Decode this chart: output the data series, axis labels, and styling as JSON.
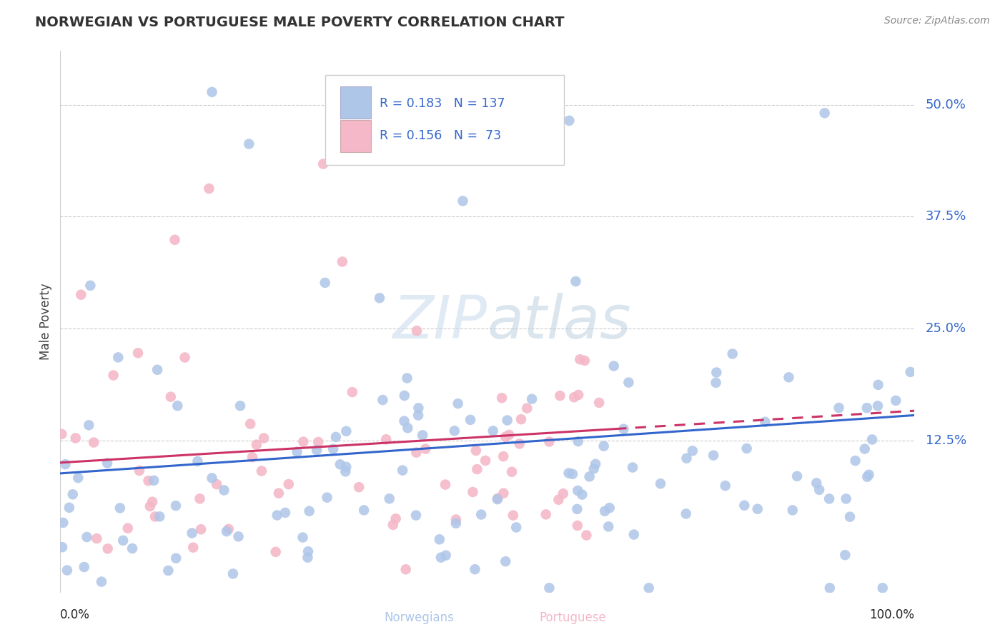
{
  "title": "NORWEGIAN VS PORTUGUESE MALE POVERTY CORRELATION CHART",
  "source": "Source: ZipAtlas.com",
  "ylabel": "Male Poverty",
  "ytick_labels": [
    "12.5%",
    "25.0%",
    "37.5%",
    "50.0%"
  ],
  "ytick_values": [
    0.125,
    0.25,
    0.375,
    0.5
  ],
  "xlim": [
    0.0,
    1.0
  ],
  "ylim": [
    -0.045,
    0.56
  ],
  "norwegian_R": 0.183,
  "norwegian_N": 137,
  "portuguese_R": 0.156,
  "portuguese_N": 73,
  "norwegian_color": "#aec6e8",
  "portuguese_color": "#f4b8c8",
  "norwegian_line_color": "#3366cc",
  "portuguese_line_color": "#cc3366",
  "background_color": "#ffffff",
  "grid_color": "#cccccc",
  "title_color": "#333333",
  "legend_text_color": "#3366cc",
  "watermark_color": "#d8e8f5"
}
